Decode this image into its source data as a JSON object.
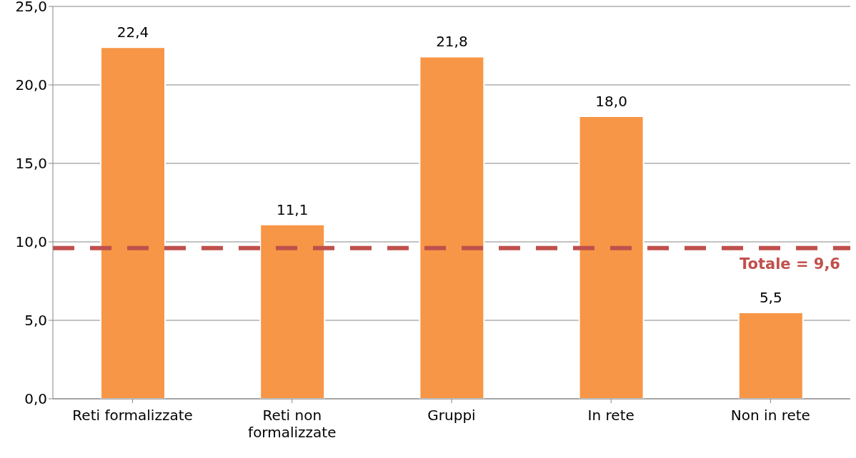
{
  "chart_data": {
    "type": "bar",
    "categories": [
      "Reti formalizzate",
      "Reti non formalizzate",
      "Gruppi",
      "In rete",
      "Non in rete"
    ],
    "values": [
      22.4,
      11.1,
      21.8,
      18.0,
      5.5
    ],
    "value_labels": [
      "22,4",
      "11,1",
      "21,8",
      "18,0",
      "5,5"
    ],
    "color": "#f79646",
    "ylim": [
      0,
      25
    ],
    "yticks": [
      {
        "value": 0,
        "label": "0,0"
      },
      {
        "value": 5,
        "label": "5,0"
      },
      {
        "value": 10,
        "label": "10,0"
      },
      {
        "value": 15,
        "label": "15,0"
      },
      {
        "value": 20,
        "label": "20,0"
      },
      {
        "value": 25,
        "label": "25,0"
      }
    ],
    "grid": "y",
    "ref_lines": [
      {
        "axis": "y",
        "value": 9.6,
        "label": "Totale = 9,6",
        "color": "#c0504d",
        "line_style": "dashed"
      }
    ]
  }
}
